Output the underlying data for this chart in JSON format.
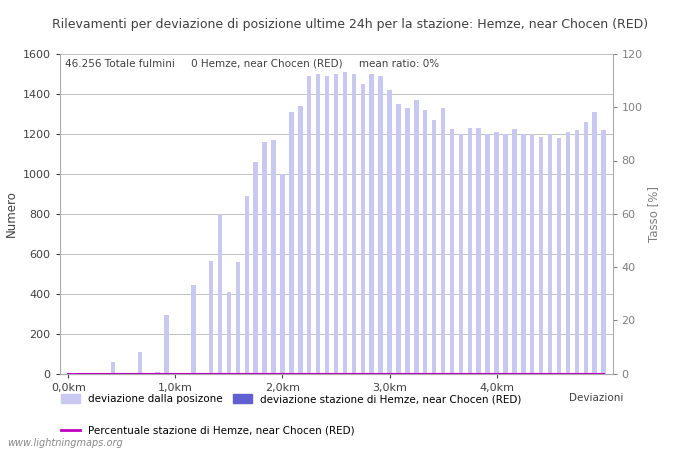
{
  "title": "Rilevamenti per deviazione di posizione ultime 24h per la stazione: Hemze, near Chocen (RED)",
  "subtitle": "46.256 Totale fulmini     0 Hemze, near Chocen (RED)     mean ratio: 0%",
  "xlabel_ticks": [
    "0,0km",
    "1,0km",
    "2,0km",
    "3,0km",
    "4,0km"
  ],
  "ylabel_left": "Numero",
  "ylabel_right": "Tasso [%]",
  "ylim_left": [
    0,
    1600
  ],
  "ylim_right": [
    0,
    120
  ],
  "yticks_left": [
    0,
    200,
    400,
    600,
    800,
    1000,
    1200,
    1400,
    1600
  ],
  "yticks_right": [
    0,
    20,
    40,
    60,
    80,
    100,
    120
  ],
  "watermark": "www.lightningmaps.org",
  "legend_entries": [
    {
      "label": "deviazione dalla posizone",
      "color": "#c8c8f0",
      "type": "bar"
    },
    {
      "label": "deviazione stazione di Hemze, near Chocen (RED)",
      "color": "#6060d0",
      "type": "bar"
    },
    {
      "label": "Percentuale stazione di Hemze, near Chocen (RED)",
      "color": "#c000c0",
      "type": "line"
    }
  ],
  "legend_right_label": "Deviazioni",
  "bar_values": [
    0,
    0,
    0,
    0,
    0,
    60,
    0,
    0,
    110,
    0,
    10,
    295,
    0,
    0,
    445,
    0,
    565,
    800,
    410,
    560,
    890,
    1060,
    1160,
    1170,
    1000,
    1310,
    1340,
    1490,
    1500,
    1490,
    1500,
    1510,
    1500,
    1450,
    1500,
    1490,
    1420,
    1350,
    1330,
    1370,
    1320,
    1270,
    1330,
    1225,
    1200,
    1230,
    1230,
    1200,
    1210,
    1200,
    1225,
    1200,
    1200,
    1185,
    1200,
    1180,
    1210,
    1220,
    1260,
    1310,
    1220
  ],
  "station_bar_values": [
    0,
    0,
    0,
    0,
    0,
    0,
    0,
    0,
    0,
    0,
    0,
    0,
    0,
    0,
    0,
    0,
    0,
    0,
    0,
    0,
    0,
    0,
    0,
    0,
    0,
    0,
    0,
    0,
    0,
    0,
    0,
    0,
    0,
    0,
    0,
    0,
    0,
    0,
    0,
    0,
    0,
    0,
    0,
    0,
    0,
    0,
    0,
    0,
    0,
    0,
    0,
    0,
    0,
    0,
    0,
    0,
    0,
    0,
    0,
    0,
    0
  ],
  "bar_color": "#c8c8f0",
  "station_bar_color": "#6060d0",
  "line_color": "#c000c0",
  "line_values": [
    0,
    0,
    0,
    0,
    0,
    0,
    0,
    0,
    0,
    0,
    0,
    0,
    0,
    0,
    0,
    0,
    0,
    0,
    0,
    0,
    0,
    0,
    0,
    0,
    0,
    0,
    0,
    0,
    0,
    0,
    0,
    0,
    0,
    0,
    0,
    0,
    0,
    0,
    0,
    0,
    0,
    0,
    0,
    0,
    0,
    0,
    0,
    0,
    0,
    0,
    0,
    0,
    0,
    0,
    0,
    0,
    0,
    0,
    0,
    0,
    0
  ],
  "bg_color": "#ffffff",
  "grid_color": "#aaaaaa",
  "text_color": "#404040",
  "axis_color": "#808080",
  "title_fontsize": 9,
  "subtitle_fontsize": 7.5,
  "axis_fontsize": 8,
  "label_fontsize": 8.5
}
